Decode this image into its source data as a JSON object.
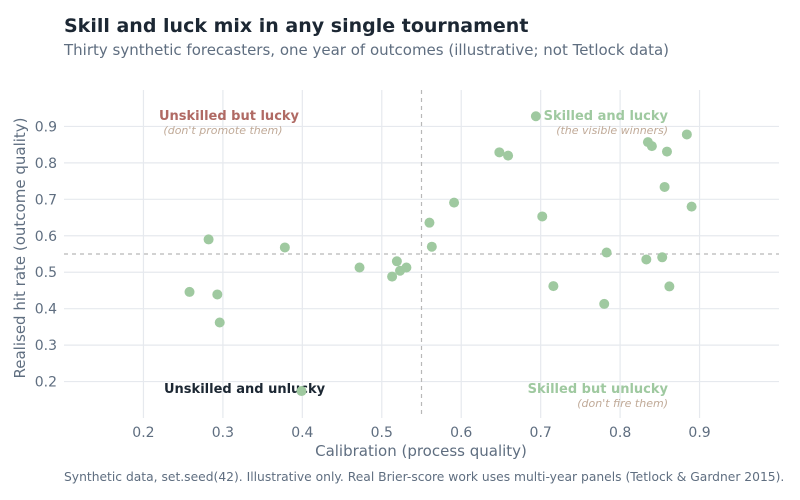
{
  "header": {
    "title": "Skill and luck mix in any single tournament",
    "subtitle": "Thirty synthetic forecasters, one year of outcomes (illustrative; not Tetlock data)"
  },
  "caption": "Synthetic data, set.seed(42). Illustrative only. Real Brier-score work uses multi-year panels (Tetlock & Gardner 2015).",
  "colors": {
    "point": "#9fc9a0",
    "grid": "#e6e9ee",
    "reference_line": "#b8b8b8",
    "unskilled_lucky": "#b06a64",
    "unskilled_unlucky": "#1c2733",
    "skilled": "#9fc9a0",
    "quadrant_sub": "#c0aa98"
  },
  "chart_data": {
    "type": "scatter",
    "xlabel": "Calibration (process quality)",
    "ylabel": "Realised hit rate (outcome quality)",
    "xlim": [
      0.1,
      1.0
    ],
    "ylim": [
      0.1,
      1.0
    ],
    "x_ticks": [
      0.2,
      0.3,
      0.4,
      0.5,
      0.6,
      0.7,
      0.8,
      0.9
    ],
    "y_ticks": [
      0.2,
      0.3,
      0.4,
      0.5,
      0.6,
      0.7,
      0.8,
      0.9
    ],
    "x_tick_labels": [
      "0.2",
      "0.3",
      "0.4",
      "0.5",
      "0.6",
      "0.7",
      "0.8",
      "0.9"
    ],
    "y_tick_labels": [
      "0.2",
      "0.3",
      "0.4",
      "0.5",
      "0.6",
      "0.7",
      "0.8",
      "0.9"
    ],
    "grid": true,
    "reference_lines": {
      "x": 0.55,
      "y": 0.55
    },
    "points": [
      {
        "x": 0.258,
        "y": 0.446
      },
      {
        "x": 0.282,
        "y": 0.59
      },
      {
        "x": 0.293,
        "y": 0.439
      },
      {
        "x": 0.296,
        "y": 0.362
      },
      {
        "x": 0.378,
        "y": 0.568
      },
      {
        "x": 0.399,
        "y": 0.174
      },
      {
        "x": 0.472,
        "y": 0.513
      },
      {
        "x": 0.513,
        "y": 0.488
      },
      {
        "x": 0.519,
        "y": 0.53
      },
      {
        "x": 0.523,
        "y": 0.504
      },
      {
        "x": 0.531,
        "y": 0.513
      },
      {
        "x": 0.56,
        "y": 0.636
      },
      {
        "x": 0.563,
        "y": 0.57
      },
      {
        "x": 0.591,
        "y": 0.691
      },
      {
        "x": 0.648,
        "y": 0.829
      },
      {
        "x": 0.659,
        "y": 0.82
      },
      {
        "x": 0.694,
        "y": 0.928
      },
      {
        "x": 0.702,
        "y": 0.653
      },
      {
        "x": 0.716,
        "y": 0.462
      },
      {
        "x": 0.78,
        "y": 0.413
      },
      {
        "x": 0.783,
        "y": 0.554
      },
      {
        "x": 0.833,
        "y": 0.535
      },
      {
        "x": 0.835,
        "y": 0.857
      },
      {
        "x": 0.84,
        "y": 0.846
      },
      {
        "x": 0.853,
        "y": 0.541
      },
      {
        "x": 0.856,
        "y": 0.734
      },
      {
        "x": 0.859,
        "y": 0.831
      },
      {
        "x": 0.862,
        "y": 0.461
      },
      {
        "x": 0.884,
        "y": 0.878
      },
      {
        "x": 0.89,
        "y": 0.68
      }
    ],
    "quadrant_labels": {
      "unskilled_lucky": {
        "label": "Unskilled but lucky",
        "sublabel": "(don't promote them)"
      },
      "skilled_lucky": {
        "label": "Skilled and lucky",
        "sublabel": "(the visible winners)"
      },
      "unskilled_unlucky": {
        "label": "Unskilled and unlucky",
        "sublabel": ""
      },
      "skilled_unlucky": {
        "label": "Skilled but unlucky",
        "sublabel": "(don't fire them)"
      }
    }
  }
}
